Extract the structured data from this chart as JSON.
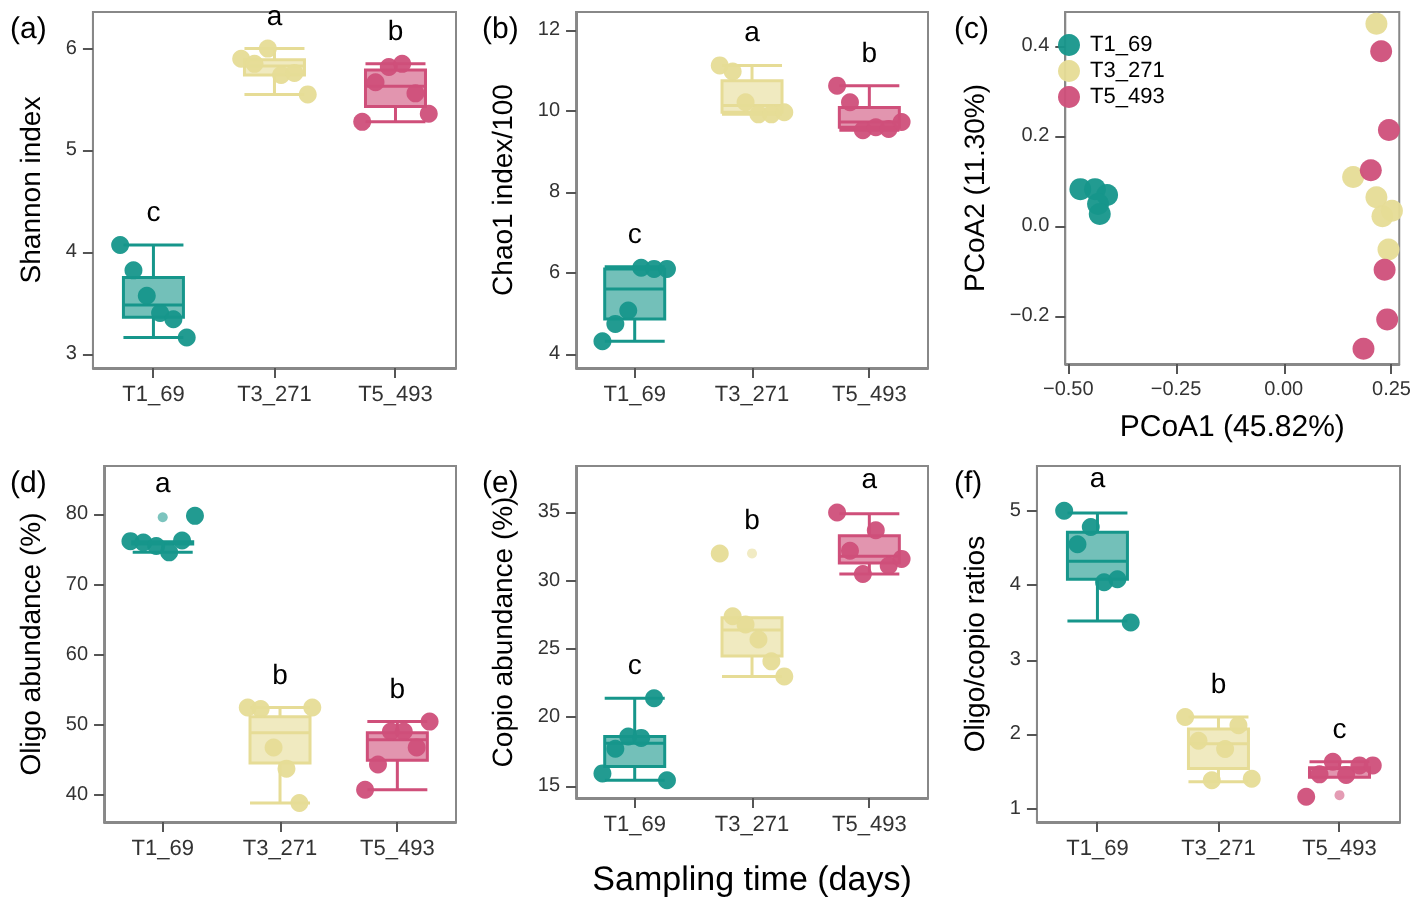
{
  "chart_data": [
    {
      "type": "box",
      "title": "(a)",
      "ylabel": "Shannon index",
      "categories": [
        "T1_69",
        "T3_271",
        "T5_493"
      ],
      "colors": [
        "#16968b",
        "#e6dc96",
        "#cf4f7a"
      ],
      "boxes": [
        {
          "low": 3.16,
          "q1": 3.36,
          "median": 3.48,
          "q3": 3.75,
          "high": 4.07
        },
        {
          "low": 5.55,
          "q1": 5.74,
          "median": 5.83,
          "q3": 5.89,
          "high": 6.0
        },
        {
          "low": 5.28,
          "q1": 5.43,
          "median": 5.63,
          "q3": 5.79,
          "high": 5.85
        }
      ],
      "ylim": [
        2.86,
        6.36
      ],
      "yticks": [
        3,
        4,
        5,
        6
      ],
      "grid": false,
      "legend": false,
      "marker": "circle",
      "annotations": [
        "c",
        "a",
        "b"
      ],
      "series": [
        {
          "type": "scatter",
          "color": "#16968b",
          "x": [
            "T1_69",
            "T1_69",
            "T1_69",
            "T1_69",
            "T1_69",
            "T1_69"
          ],
          "values": [
            4.07,
            3.82,
            3.57,
            3.4,
            3.34,
            3.16
          ]
        },
        {
          "type": "scatter",
          "color": "#e6dc96",
          "x": [
            "T3_271",
            "T3_271",
            "T3_271",
            "T3_271",
            "T3_271",
            "T3_271"
          ],
          "values": [
            5.9,
            5.85,
            6.0,
            5.74,
            5.76,
            5.55
          ]
        },
        {
          "type": "scatter",
          "color": "#cf4f7a",
          "x": [
            "T5_493",
            "T5_493",
            "T5_493",
            "T5_493",
            "T5_493",
            "T5_493"
          ],
          "values": [
            5.28,
            5.67,
            5.82,
            5.85,
            5.56,
            5.36
          ]
        }
      ]
    },
    {
      "type": "box",
      "title": "(b)",
      "ylabel": "Chao1 index/100",
      "categories": [
        "T1_69",
        "T3_271",
        "T5_493"
      ],
      "colors": [
        "#16968b",
        "#e6dc96",
        "#cf4f7a"
      ],
      "boxes": [
        {
          "low": 4.31,
          "q1": 4.86,
          "median": 5.6,
          "q3": 6.1,
          "high": 6.15
        },
        {
          "low": 9.92,
          "q1": 9.97,
          "median": 10.14,
          "q3": 10.75,
          "high": 11.13
        },
        {
          "low": 9.53,
          "q1": 9.6,
          "median": 9.73,
          "q3": 10.09,
          "high": 10.63
        }
      ],
      "ylim": [
        3.65,
        12.45
      ],
      "yticks": [
        4,
        6,
        8,
        10,
        12
      ],
      "grid": false,
      "legend": false,
      "marker": "circle",
      "annotations": [
        "c",
        "a",
        "b"
      ],
      "series": [
        {
          "type": "scatter",
          "color": "#16968b",
          "x": [
            "T1_69",
            "T1_69",
            "T1_69",
            "T1_69",
            "T1_69",
            "T1_69"
          ],
          "values": [
            4.31,
            4.74,
            5.07,
            6.13,
            6.1,
            6.1
          ]
        },
        {
          "type": "scatter",
          "color": "#e6dc96",
          "x": [
            "T3_271",
            "T3_271",
            "T3_271",
            "T3_271",
            "T3_271",
            "T3_271"
          ],
          "values": [
            11.13,
            10.98,
            10.22,
            9.92,
            9.92,
            9.97
          ]
        },
        {
          "type": "scatter",
          "color": "#cf4f7a",
          "x": [
            "T5_493",
            "T5_493",
            "T5_493",
            "T5_493",
            "T5_493",
            "T5_493"
          ],
          "values": [
            10.63,
            10.22,
            9.53,
            9.6,
            9.56,
            9.73
          ]
        }
      ]
    },
    {
      "type": "scatter",
      "title": "(c)",
      "xlabel": "PCoA1 (45.82%)",
      "ylabel": "PCoA2 (11.30%)",
      "xlim": [
        -0.507,
        0.268
      ],
      "xticks": [
        {
          "value": -0.5,
          "label": "−0.50"
        },
        {
          "value": -0.25,
          "label": "−0.25"
        },
        {
          "value": 0,
          "label": "0.00"
        },
        {
          "value": 0.25,
          "label": "0.25"
        }
      ],
      "ylim": [
        -0.306,
        0.475
      ],
      "yticks": [
        {
          "value": -0.2,
          "label": "−0.2"
        },
        {
          "value": 0,
          "label": "0.0"
        },
        {
          "value": 0.2,
          "label": "0.2"
        },
        {
          "value": 0.4,
          "label": "0.4"
        }
      ],
      "grid": false,
      "legend": "top left",
      "marker": "circle",
      "series": [
        {
          "name": "T1_69",
          "color": "#16968b",
          "x": [
            -0.472,
            -0.438,
            null,
            -0.41,
            -0.431,
            -0.427
          ],
          "values": [
            0.082,
            0.082,
            null,
            0.069,
            0.049,
            0.027
          ]
        },
        {
          "name": "T3_271",
          "color": "#e6dc96",
          "x": [
            0.215,
            0.161,
            0.215,
            0.229,
            0.251,
            0.243
          ],
          "values": [
            0.449,
            0.109,
            0.064,
            0.022,
            0.034,
            -0.052
          ]
        },
        {
          "name": "T5_493",
          "color": "#cf4f7a",
          "x": [
            0.226,
            0.244,
            0.202,
            0.234,
            0.24,
            0.185
          ],
          "values": [
            0.388,
            0.213,
            0.124,
            -0.097,
            -0.207,
            -0.272
          ]
        }
      ]
    },
    {
      "type": "box",
      "title": "(d)",
      "ylabel": "Oligo abundance (%)",
      "categories": [
        "T1_69",
        "T3_271",
        "T5_493"
      ],
      "colors": [
        "#16968b",
        "#e6dc96",
        "#cf4f7a"
      ],
      "boxes": [
        {
          "low": 74.6,
          "q1": 75.8,
          "median": 76,
          "q3": 76.1,
          "high": 76.1,
          "outliers": [
            79.6
          ]
        },
        {
          "low": 38.9,
          "q1": 44.6,
          "median": 48.9,
          "q3": 51.2,
          "high": 52.5
        },
        {
          "low": 40.8,
          "q1": 45.0,
          "median": 47.9,
          "q3": 48.9,
          "high": 50.5
        }
      ],
      "ylim": [
        36.2,
        86.9
      ],
      "yticks": [
        40,
        50,
        60,
        70,
        80
      ],
      "grid": false,
      "legend": false,
      "marker": "circle",
      "annotations": [
        "a",
        "b",
        "b"
      ],
      "series": [
        {
          "type": "scatter",
          "color": "#16968b",
          "x": [
            "T1_69",
            "T1_69",
            "T1_69",
            "T1_69",
            "T1_69",
            "T1_69"
          ],
          "values": [
            76.2,
            76.0,
            75.5,
            74.6,
            76.3,
            79.8
          ]
        },
        {
          "type": "scatter",
          "color": "#e6dc96",
          "x": [
            "T3_271",
            "T3_271",
            "T3_271",
            "T3_271",
            "T3_271",
            "T3_271"
          ],
          "values": [
            52.5,
            52.3,
            46.8,
            43.8,
            38.9,
            52.5
          ]
        },
        {
          "type": "scatter",
          "color": "#cf4f7a",
          "x": [
            "T5_493",
            "T5_493",
            "T5_493",
            "T5_493",
            "T5_493",
            "T5_493"
          ],
          "values": [
            40.8,
            44.4,
            49.1,
            49.1,
            46.8,
            50.5
          ]
        }
      ]
    },
    {
      "type": "box",
      "title": "(e)",
      "xlabel": "Sampling time (days)",
      "ylabel": "Copio abundance (%)",
      "categories": [
        "T1_69",
        "T3_271",
        "T5_493"
      ],
      "colors": [
        "#16968b",
        "#e6dc96",
        "#cf4f7a"
      ],
      "boxes": [
        {
          "low": 15.4,
          "q1": 16.4,
          "median": 18.1,
          "q3": 18.6,
          "high": 21.4
        },
        {
          "low": 23.0,
          "q1": 24.5,
          "median": 26.4,
          "q3": 27.3,
          "high": 27.3,
          "outliers": [
            32.0
          ]
        },
        {
          "low": 30.5,
          "q1": 31.3,
          "median": 31.8,
          "q3": 33.3,
          "high": 34.9
        }
      ],
      "ylim": [
        14.1,
        38.4
      ],
      "yticks": [
        15,
        20,
        25,
        30,
        35
      ],
      "grid": false,
      "legend": false,
      "marker": "circle",
      "annotations": [
        "c",
        "b",
        "a"
      ],
      "series": [
        {
          "type": "scatter",
          "color": "#16968b",
          "x": [
            "T1_69",
            "T1_69",
            "T1_69",
            "T1_69",
            "T1_69",
            "T1_69"
          ],
          "values": [
            15.9,
            17.7,
            18.6,
            18.5,
            21.4,
            15.4
          ]
        },
        {
          "type": "scatter",
          "color": "#e6dc96",
          "x": [
            "T3_271",
            "T3_271",
            "T3_271",
            "T3_271",
            "T3_271",
            "T3_271"
          ],
          "values": [
            32.0,
            27.4,
            26.8,
            25.7,
            24.1,
            23.0
          ]
        },
        {
          "type": "scatter",
          "color": "#cf4f7a",
          "x": [
            "T5_493",
            "T5_493",
            "T5_493",
            "T5_493",
            "T5_493",
            "T5_493"
          ],
          "values": [
            35.0,
            32.2,
            30.5,
            33.7,
            31.1,
            31.6
          ]
        }
      ]
    },
    {
      "type": "box",
      "title": "(f)",
      "ylabel": "Oligo/copio ratios",
      "categories": [
        "T1_69",
        "T3_271",
        "T5_493"
      ],
      "colors": [
        "#16968b",
        "#e6dc96",
        "#cf4f7a"
      ],
      "boxes": [
        {
          "low": 3.52,
          "q1": 4.08,
          "median": 4.32,
          "q3": 4.71,
          "high": 4.97
        },
        {
          "low": 1.36,
          "q1": 1.54,
          "median": 1.87,
          "q3": 2.07,
          "high": 2.23
        },
        {
          "low": 1.42,
          "q1": 1.42,
          "median": 1.54,
          "q3": 1.55,
          "high": 1.63,
          "outliers": [
            1.18
          ]
        }
      ],
      "ylim": [
        0.82,
        5.6
      ],
      "yticks": [
        1,
        2,
        3,
        4,
        5
      ],
      "grid": false,
      "legend": false,
      "marker": "circle",
      "annotations": [
        "a",
        "b",
        "c"
      ],
      "series": [
        {
          "type": "scatter",
          "color": "#16968b",
          "x": [
            "T1_69",
            "T1_69",
            "T1_69",
            "T1_69",
            "T1_69",
            "T1_69"
          ],
          "values": [
            5.0,
            4.55,
            4.78,
            4.04,
            4.08,
            3.5
          ]
        },
        {
          "type": "scatter",
          "color": "#e6dc96",
          "x": [
            "T3_271",
            "T3_271",
            "T3_271",
            "T3_271",
            "T3_271",
            "T3_271"
          ],
          "values": [
            2.23,
            1.91,
            1.38,
            1.8,
            2.12,
            1.4
          ]
        },
        {
          "type": "scatter",
          "color": "#cf4f7a",
          "x": [
            "T5_493",
            "T5_493",
            "T5_493",
            "T5_493",
            "T5_493",
            "T5_493"
          ],
          "values": [
            1.16,
            1.46,
            1.63,
            1.45,
            1.58,
            1.58
          ]
        }
      ]
    }
  ]
}
